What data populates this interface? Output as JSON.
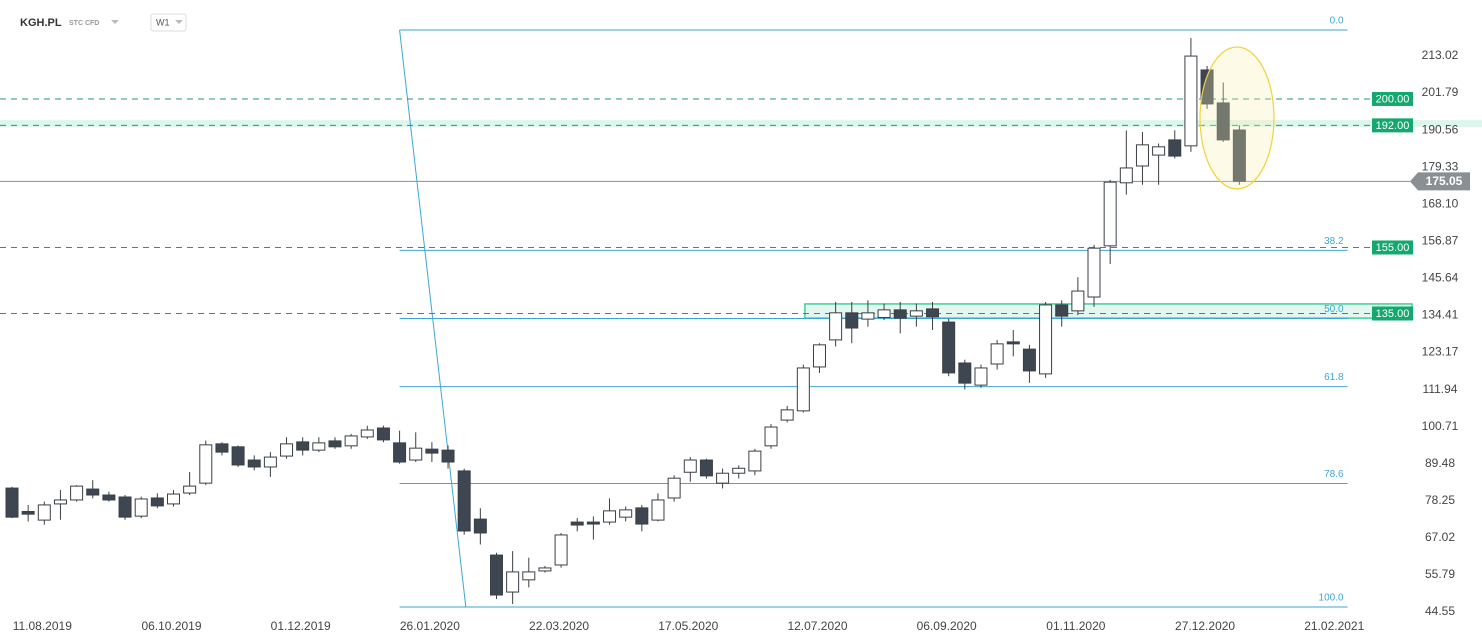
{
  "chart_data": {
    "type": "candlestick",
    "symbol": "KGH.PL",
    "instrument": "STC CFD",
    "interval": "W1",
    "open": [
      82.1,
      75.0,
      72.4,
      77.3,
      78.5,
      81.8,
      80.0,
      79.4,
      73.6,
      79.1,
      77.3,
      80.6,
      83.6,
      95.5,
      94.6,
      90.6,
      88.5,
      91.8,
      96.1,
      93.6,
      96.4,
      94.9,
      97.6,
      100.3,
      95.8,
      90.6,
      93.9,
      93.6,
      87.3,
      72.7,
      61.8,
      50.6,
      54.3,
      57.0,
      58.8,
      71.8,
      71.8,
      71.8,
      73.3,
      76.1,
      72.4,
      79.1,
      86.9,
      90.6,
      83.6,
      86.6,
      87.3,
      94.9,
      102.7,
      105.5,
      118.8,
      127.0,
      135.2,
      133.3,
      133.8,
      136.1,
      134.2,
      136.4,
      132.4,
      120.0,
      113.3,
      119.7,
      126.4,
      124.2,
      116.7,
      137.6,
      135.8,
      140.0,
      155.5,
      174.6,
      179.7,
      183.0,
      187.6,
      185.8,
      208.8,
      198.8,
      190.6
    ],
    "high": [
      82.5,
      77.0,
      78.0,
      81.5,
      83.0,
      84.5,
      81.0,
      80.0,
      79.5,
      80.5,
      81.5,
      87.0,
      96.5,
      96.0,
      95.0,
      92.0,
      93.0,
      97.5,
      97.5,
      97.5,
      97.5,
      98.5,
      101.0,
      101.0,
      99.5,
      99.0,
      96.0,
      95.0,
      88.0,
      76.0,
      62.5,
      63.0,
      61.0,
      58.5,
      68.5,
      73.0,
      73.5,
      79.0,
      76.5,
      77.0,
      80.5,
      86.0,
      91.5,
      91.0,
      88.0,
      89.0,
      94.0,
      101.5,
      107.0,
      119.5,
      126.0,
      138.5,
      138.5,
      139.0,
      138.0,
      138.5,
      138.0,
      138.5,
      133.5,
      121.0,
      119.5,
      127.0,
      130.0,
      125.5,
      138.5,
      139.0,
      146.0,
      155.8,
      175.5,
      190.5,
      190.0,
      186.5,
      190.5,
      218.5,
      210.0,
      205.0,
      192.0
    ],
    "low": [
      73.0,
      72.0,
      71.0,
      72.5,
      78.0,
      79.0,
      78.0,
      72.5,
      73.0,
      76.0,
      76.5,
      80.0,
      83.0,
      92.0,
      88.5,
      87.5,
      85.5,
      91.0,
      92.0,
      93.0,
      94.0,
      94.0,
      97.0,
      96.0,
      89.5,
      90.0,
      90.0,
      88.0,
      68.0,
      65.0,
      48.5,
      47.0,
      52.0,
      56.5,
      58.0,
      69.0,
      66.5,
      71.0,
      72.0,
      69.0,
      72.0,
      78.0,
      84.0,
      85.0,
      82.0,
      85.0,
      86.0,
      94.0,
      102.0,
      105.0,
      117.0,
      125.0,
      126.0,
      131.0,
      133.0,
      129.0,
      131.0,
      130.0,
      116.0,
      112.0,
      112.5,
      118.0,
      122.0,
      114.0,
      115.5,
      131.0,
      134.5,
      137.0,
      150.0,
      171.0,
      174.0,
      174.0,
      182.0,
      184.0,
      197.0,
      187.0,
      174.0
    ],
    "close": [
      73.3,
      74.2,
      77.0,
      78.5,
      82.7,
      80.0,
      78.5,
      73.3,
      78.8,
      76.7,
      80.3,
      82.7,
      95.2,
      93.0,
      89.1,
      88.5,
      91.5,
      95.5,
      93.6,
      95.8,
      94.6,
      97.9,
      99.7,
      96.7,
      90.0,
      94.2,
      92.7,
      90.0,
      69.1,
      68.5,
      49.7,
      56.7,
      56.7,
      57.9,
      67.9,
      70.9,
      71.2,
      75.2,
      75.5,
      71.2,
      78.5,
      85.1,
      90.6,
      85.8,
      86.6,
      88.1,
      93.3,
      100.6,
      105.8,
      118.5,
      125.5,
      135.2,
      130.6,
      135.2,
      136.1,
      133.6,
      135.8,
      134.0,
      117.0,
      113.9,
      118.5,
      125.8,
      125.8,
      117.6,
      137.6,
      134.2,
      141.8,
      154.8,
      174.8,
      179.1,
      186.1,
      185.5,
      182.7,
      213.0,
      198.5,
      187.6,
      175.05
    ],
    "xlim": [
      -0.743,
      83.47
    ],
    "xticks": [
      {
        "value": 2,
        "label": "11.08.2019"
      },
      {
        "value": 10,
        "label": "06.10.2019"
      },
      {
        "value": 18,
        "label": "01.12.2019"
      },
      {
        "value": 26,
        "label": "26.01.2020"
      },
      {
        "value": 34,
        "label": "22.03.2020"
      },
      {
        "value": 42,
        "label": "17.05.2020"
      },
      {
        "value": 50,
        "label": "12.07.2020"
      },
      {
        "value": 58,
        "label": "06.09.2020"
      },
      {
        "value": 66,
        "label": "01.11.2020"
      },
      {
        "value": 74,
        "label": "27.12.2020"
      },
      {
        "value": 82,
        "label": "21.02.2021"
      }
    ],
    "ylim": [
      35.16,
      229.99
    ],
    "yticks": [
      213.02,
      201.79,
      190.56,
      179.33,
      {
        "value": 168.1,
        "label": "168.10"
      },
      156.87,
      145.64,
      134.41,
      123.17,
      111.94,
      100.71,
      89.48,
      78.25,
      67.02,
      55.79,
      44.55
    ],
    "last_price": {
      "value": 175.05,
      "label": "175.05"
    },
    "levels": [
      {
        "value": 200,
        "label": "200.00"
      },
      {
        "value": 192,
        "label": "192.00"
      },
      {
        "value": 155,
        "label": "155.00"
      },
      {
        "value": 135,
        "label": "135.00"
      }
    ],
    "zones": [
      {
        "low": 191.5,
        "high": 193.6
      },
      {
        "low": 133.6,
        "high": 137.9,
        "start": 49.1
      }
    ],
    "fibonacci": {
      "high": 220.9,
      "low": 46.07,
      "start": 24,
      "end": 28.1,
      "extend": 82.7,
      "levels": [
        {
          "value": 0,
          "label": "0.0"
        },
        38.2,
        {
          "value": 50,
          "label": "50.0"
        },
        61.8,
        78.6,
        {
          "value": 100,
          "label": "100.0"
        }
      ]
    },
    "colors": {
      "up": "#ffffff",
      "down": "#3d4651",
      "outline": "#3a3f45",
      "fib": "#3ea6d6",
      "level": "#1f9a78",
      "level_label": "#12a86e",
      "price": "#8a8f94"
    }
  }
}
